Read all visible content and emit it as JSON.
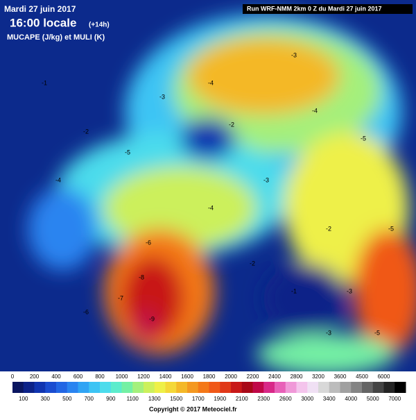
{
  "header": {
    "date": "Mardi 27 juin 2017",
    "time": "16:00 locale",
    "offset": "(+14h)",
    "parameter": "MUCAPE (J/kg) et MULI (K)",
    "run": "Run WRF-NMM 2km 0 Z du Mardi 27 juin 2017"
  },
  "map": {
    "contour_labels": [
      "-1",
      "-2",
      "-3",
      "-4",
      "-5",
      "-6",
      "-7",
      "-8",
      "-9",
      "-3",
      "-2",
      "-4",
      "-5",
      "-3",
      "-4",
      "-2",
      "-6",
      "-5",
      "-1",
      "-3",
      "-4",
      "-2",
      "-3",
      "-5"
    ]
  },
  "legend": {
    "top_labels": [
      0,
      200,
      400,
      600,
      800,
      1000,
      1200,
      1400,
      1600,
      1800,
      2000,
      2200,
      2400,
      2800,
      3200,
      3600,
      4500,
      6000
    ],
    "bottom_labels": [
      100,
      300,
      500,
      700,
      900,
      1100,
      1300,
      1500,
      1700,
      1900,
      2100,
      2300,
      2600,
      3000,
      3400,
      4000,
      5000,
      7000
    ],
    "colors": [
      "#0a1660",
      "#0c2288",
      "#1034b0",
      "#1a4cd0",
      "#2266e4",
      "#2a84f0",
      "#30a4f4",
      "#3cc4f4",
      "#4cdcec",
      "#5ceccc",
      "#74f0a4",
      "#a4f07c",
      "#ccf05c",
      "#eef048",
      "#f4d838",
      "#f4b828",
      "#f49820",
      "#f47818",
      "#f05818",
      "#e03818",
      "#c81818",
      "#a80818",
      "#c00848",
      "#d82888",
      "#e860b8",
      "#f098d8",
      "#f4c4ec",
      "#f0e0f4",
      "#d8d8d8",
      "#bcbcbc",
      "#a0a0a0",
      "#848484",
      "#646464",
      "#444444",
      "#242424",
      "#000000"
    ]
  },
  "footer": {
    "copyright": "Copyright © 2017 Meteociel.fr"
  }
}
